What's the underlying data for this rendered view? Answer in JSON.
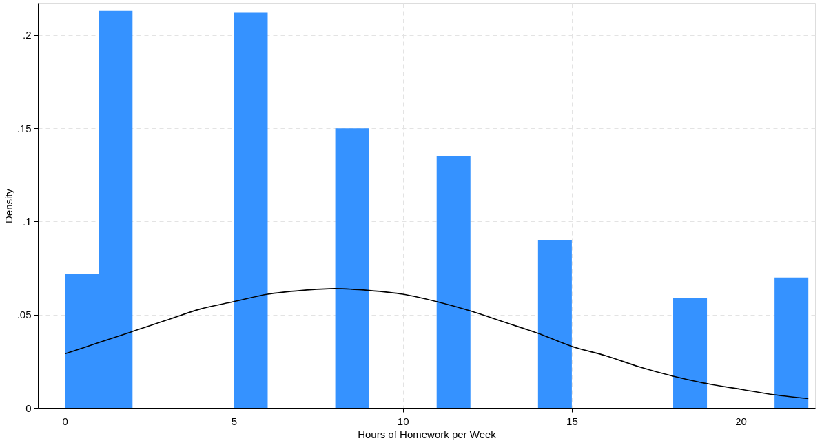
{
  "chart_data": {
    "type": "histogram",
    "xlabel": "Hours of Homework per Week",
    "ylabel": "Density",
    "bins": [
      0,
      1,
      2,
      3,
      4,
      5,
      6,
      7,
      8,
      9,
      10,
      11,
      12,
      13,
      14,
      15,
      16,
      17,
      18,
      19,
      20,
      21,
      22
    ],
    "values": [
      0.072,
      0.213,
      0,
      0,
      0,
      0.212,
      0,
      0,
      0.15,
      0,
      0,
      0.135,
      0,
      0,
      0.09,
      0,
      0,
      0,
      0.059,
      0,
      0,
      0.07
    ],
    "color": "#3592ff",
    "series": [
      {
        "type": "line",
        "color": "#000000",
        "x": [
          0,
          1,
          2,
          3,
          4,
          5,
          6,
          7,
          8,
          9,
          10,
          11,
          12,
          13,
          14,
          15,
          16,
          17,
          18,
          19,
          20,
          21,
          22
        ],
        "values": [
          0.029,
          0.035,
          0.041,
          0.047,
          0.053,
          0.057,
          0.061,
          0.063,
          0.064,
          0.063,
          0.061,
          0.057,
          0.052,
          0.046,
          0.04,
          0.033,
          0.028,
          0.022,
          0.017,
          0.013,
          0.01,
          0.007,
          0.005
        ]
      }
    ],
    "xlim": [
      -0.8,
      22.2
    ],
    "ylim": [
      0,
      0.217
    ],
    "xticks": [
      0,
      5,
      10,
      15,
      20
    ],
    "yticks": [
      0,
      {
        "value": 0.05,
        "label": ".05"
      },
      {
        "value": 0.1,
        "label": ".1"
      },
      {
        "value": 0.15,
        "label": ".15"
      },
      {
        "value": 0.2,
        "label": ".2"
      }
    ],
    "grid": true
  }
}
